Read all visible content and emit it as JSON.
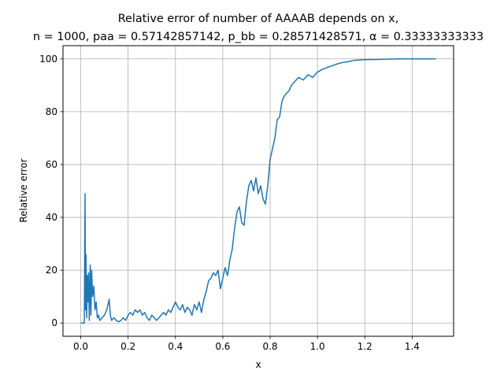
{
  "chart_data": {
    "type": "line",
    "title_line1": "Relative error of number of AAAAB depends on x,",
    "title_line2": "n = 1000, paa = 0.57142857142, p_bb = 0.28571428571, α = 0.33333333333",
    "xlabel": "x",
    "ylabel": "Relative error",
    "xlim": [
      -0.075,
      1.575
    ],
    "ylim": [
      -5,
      105
    ],
    "x_ticks": [
      0.0,
      0.2,
      0.4,
      0.6,
      0.8,
      1.0,
      1.2,
      1.4
    ],
    "x_tick_labels": [
      "0.0",
      "0.2",
      "0.4",
      "0.6",
      "0.8",
      "1.0",
      "1.2",
      "1.4"
    ],
    "y_ticks": [
      0,
      20,
      40,
      60,
      80,
      100
    ],
    "y_tick_labels": [
      "0",
      "20",
      "40",
      "60",
      "80",
      "100"
    ],
    "grid": true,
    "series": [
      {
        "color": "#1f77b4",
        "x": [
          0.0,
          0.01,
          0.015,
          0.018,
          0.02,
          0.022,
          0.025,
          0.028,
          0.03,
          0.033,
          0.036,
          0.04,
          0.043,
          0.046,
          0.05,
          0.055,
          0.06,
          0.065,
          0.07,
          0.075,
          0.08,
          0.09,
          0.1,
          0.11,
          0.12,
          0.125,
          0.13,
          0.14,
          0.15,
          0.16,
          0.17,
          0.18,
          0.19,
          0.2,
          0.21,
          0.22,
          0.23,
          0.24,
          0.25,
          0.26,
          0.27,
          0.28,
          0.29,
          0.3,
          0.31,
          0.32,
          0.33,
          0.34,
          0.35,
          0.36,
          0.37,
          0.38,
          0.39,
          0.4,
          0.41,
          0.42,
          0.43,
          0.44,
          0.45,
          0.46,
          0.47,
          0.48,
          0.49,
          0.5,
          0.51,
          0.52,
          0.53,
          0.54,
          0.55,
          0.56,
          0.57,
          0.58,
          0.59,
          0.6,
          0.61,
          0.62,
          0.63,
          0.64,
          0.65,
          0.66,
          0.67,
          0.68,
          0.69,
          0.7,
          0.71,
          0.72,
          0.73,
          0.74,
          0.75,
          0.76,
          0.77,
          0.78,
          0.79,
          0.8,
          0.81,
          0.82,
          0.83,
          0.84,
          0.85,
          0.86,
          0.87,
          0.88,
          0.89,
          0.9,
          0.92,
          0.94,
          0.96,
          0.98,
          1.0,
          1.02,
          1.05,
          1.08,
          1.1,
          1.13,
          1.16,
          1.2,
          1.25,
          1.3,
          1.35,
          1.4,
          1.45,
          1.5
        ],
        "y": [
          0,
          0,
          0,
          49,
          5,
          26,
          2,
          18,
          8,
          19,
          1,
          22,
          3,
          20,
          10,
          14,
          5,
          8,
          2,
          3,
          1,
          2,
          3,
          5,
          9,
          3,
          1,
          2,
          1,
          0.5,
          1,
          2,
          1,
          3,
          4,
          3,
          5,
          4,
          5,
          3,
          4,
          2,
          1,
          3,
          2,
          1,
          2,
          3,
          4,
          3,
          5,
          4,
          6,
          8,
          6,
          5,
          7,
          4,
          6,
          5,
          3,
          7,
          5,
          8,
          4,
          9,
          12,
          16,
          17,
          19,
          18,
          20,
          13,
          17,
          21,
          18,
          24,
          28,
          36,
          42,
          44,
          38,
          37,
          46,
          52,
          54,
          50,
          55,
          49,
          52,
          47,
          45,
          52,
          62,
          66,
          70,
          77,
          78,
          84,
          86,
          87,
          88,
          90,
          91,
          93,
          92,
          94,
          93,
          95,
          96,
          97,
          98,
          98.5,
          99,
          99.5,
          99.7,
          99.8,
          99.9,
          100,
          100,
          100,
          100
        ]
      }
    ]
  }
}
